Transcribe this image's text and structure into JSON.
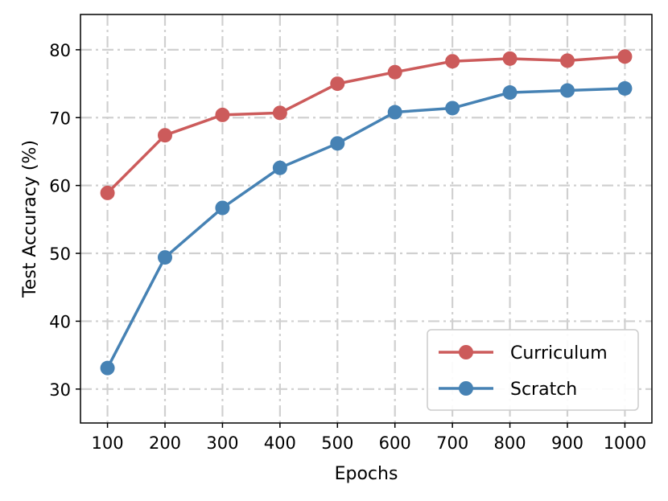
{
  "chart_data": {
    "type": "line",
    "title": "",
    "xlabel": "Epochs",
    "ylabel": "Test Accuracy (%)",
    "x": [
      100,
      200,
      300,
      400,
      500,
      600,
      700,
      800,
      900,
      1000
    ],
    "xticks": [
      "100",
      "200",
      "300",
      "400",
      "500",
      "600",
      "700",
      "800",
      "900",
      "1000"
    ],
    "yticks": [
      "30",
      "40",
      "50",
      "60",
      "70",
      "80"
    ],
    "ylim": [
      25,
      85.2
    ],
    "grid": true,
    "legend_position": "lower-right",
    "series": [
      {
        "name": "Curriculum",
        "color": "#cc5b5b",
        "values": [
          58.9,
          67.4,
          70.4,
          70.7,
          75.0,
          76.7,
          78.3,
          78.7,
          78.4,
          79.0
        ]
      },
      {
        "name": "Scratch",
        "color": "#4682b4",
        "values": [
          33.1,
          49.4,
          56.7,
          62.6,
          66.2,
          70.8,
          71.4,
          73.7,
          74.0,
          74.3
        ]
      }
    ]
  }
}
